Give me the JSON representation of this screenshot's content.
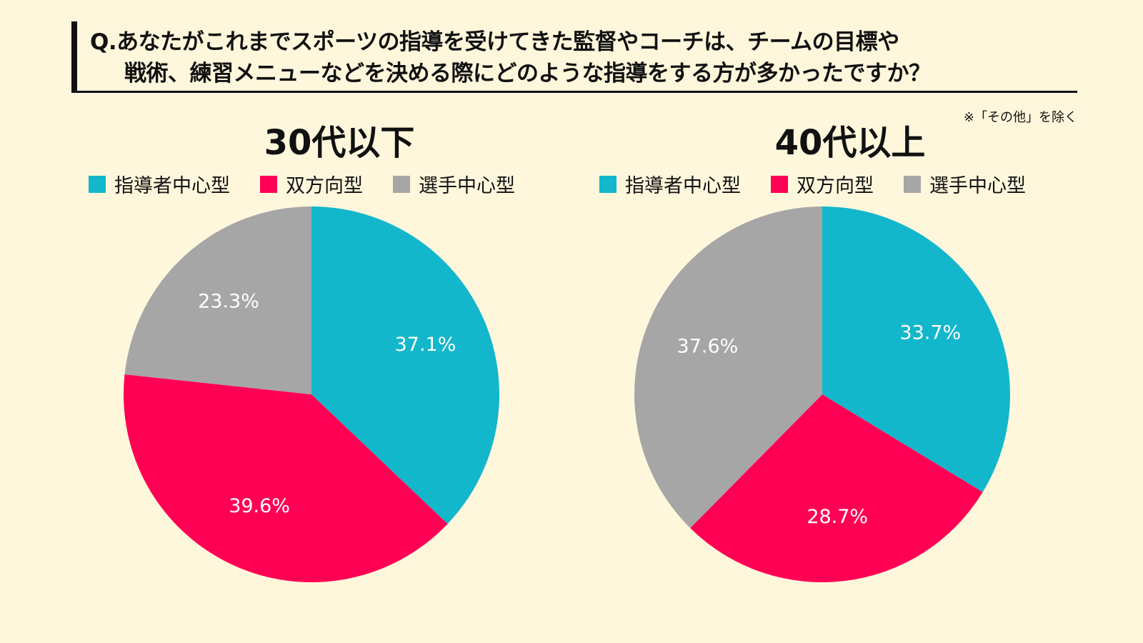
{
  "header": {
    "question_line1": "Q.あなたがこれまでスポーツの指導を受けてきた監督やコーチは、チームの目標や",
    "question_line2": "戦術、練習メニューなどを決める際にどのような指導をする方が多かったですか？",
    "note": "※「その他」を除く"
  },
  "legend": [
    {
      "label": "指導者中心型",
      "color": "#12B7CC"
    },
    {
      "label": "双方向型",
      "color": "#FF0055"
    },
    {
      "label": "選手中心型",
      "color": "#A6A6A6"
    }
  ],
  "chart_data": [
    {
      "type": "pie",
      "title": "30代以下",
      "categories": [
        "指導者中心型",
        "双方向型",
        "選手中心型"
      ],
      "values": [
        37.1,
        39.6,
        23.3
      ],
      "labels": [
        "37.1%",
        "39.6%",
        "23.3%"
      ],
      "colors": [
        "#12B7CC",
        "#FF0055",
        "#A6A6A6"
      ]
    },
    {
      "type": "pie",
      "title": "40代以上",
      "categories": [
        "指導者中心型",
        "双方向型",
        "選手中心型"
      ],
      "values": [
        33.7,
        28.7,
        37.6
      ],
      "labels": [
        "33.7%",
        "28.7%",
        "37.6%"
      ],
      "colors": [
        "#12B7CC",
        "#FF0055",
        "#A6A6A6"
      ]
    }
  ]
}
